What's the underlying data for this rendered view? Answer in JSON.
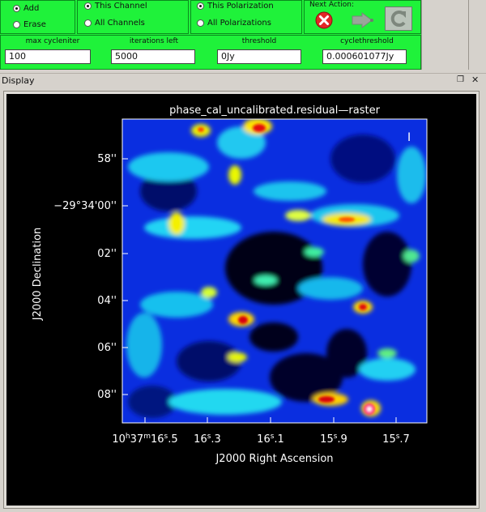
{
  "controls": {
    "mode": {
      "add": "Add",
      "erase": "Erase",
      "selected": "add"
    },
    "channel": {
      "this": "This Channel",
      "all": "All Channels",
      "selected": "this"
    },
    "polarization": {
      "this": "This Polarization",
      "all": "All Polarizations",
      "selected": "this"
    },
    "next_action": {
      "title": "Next Action:",
      "stop_icon": "x-circle-icon",
      "continue_icon": "arrow-right-icon",
      "refresh_icon": "refresh-icon"
    },
    "params": {
      "max_cycleniter": {
        "label": "max cycleniter",
        "value": "100"
      },
      "iterations_left": {
        "label": "iterations left",
        "value": "5000"
      },
      "threshold": {
        "label": "threshold",
        "value": "0Jy"
      },
      "cyclethreshold": {
        "label": "cyclethreshold",
        "value": "0.000601077Jy"
      }
    }
  },
  "display": {
    "title": "Display",
    "plot": {
      "title": "phase_cal_uncalibrated.residual—raster",
      "x_axis_label": "J2000 Right Ascension",
      "y_axis_label": "J2000 Declination",
      "x_ticks": [
        {
          "main": "10",
          "sup1": "h",
          "mid": "37",
          "sup2": "m",
          "tail": "16",
          "sup3": "s",
          "end": ".5"
        },
        {
          "main": "16",
          "sup3": "s",
          "end": ".3"
        },
        {
          "main": "16",
          "sup3": "s",
          "end": ".1"
        },
        {
          "main": "15",
          "sup3": "s",
          "end": ".9"
        },
        {
          "main": "15",
          "sup3": "s",
          "end": ".7"
        }
      ],
      "y_ticks": [
        "58''",
        "−29°34'00''",
        "02''",
        "04''",
        "06''",
        "08''"
      ],
      "cursor_marker": "I"
    }
  },
  "colors": {
    "panel_green": "#1ff23a",
    "plot_bg": "#000000",
    "window_bg": "#d6d2cc"
  }
}
